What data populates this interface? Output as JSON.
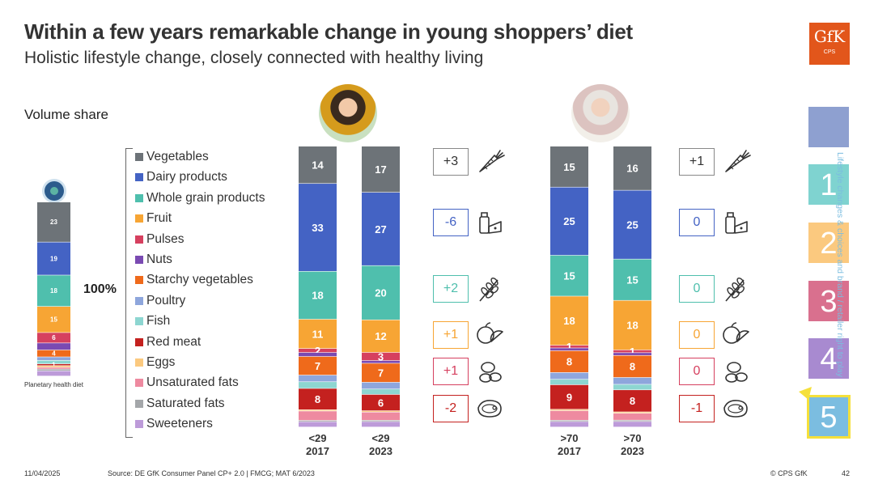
{
  "header": {
    "title": "Within a few years remarkable change in young shoppers’ diet",
    "subtitle": "Holistic lifestyle change, closely connected with healthy living"
  },
  "logo": {
    "brand": "GfK",
    "sub": "CPS",
    "color": "#e2561b"
  },
  "volume_label": "Volume share",
  "hundred_label": "100%",
  "planetary_label": "Planetary health diet",
  "legend": [
    {
      "label": "Vegetables",
      "color": "#6d7378"
    },
    {
      "label": "Dairy products",
      "color": "#4463c4"
    },
    {
      "label": "Whole grain products",
      "color": "#4fbfad"
    },
    {
      "label": "Fruit",
      "color": "#f7a534"
    },
    {
      "label": "Pulses",
      "color": "#d6405f"
    },
    {
      "label": "Nuts",
      "color": "#7a4ab2"
    },
    {
      "label": "Starchy vegetables",
      "color": "#ef6a1b"
    },
    {
      "label": "Poultry",
      "color": "#8ea6dc"
    },
    {
      "label": "Fish",
      "color": "#8dd6d1"
    },
    {
      "label": "Red meat",
      "color": "#c4211f"
    },
    {
      "label": "Eggs",
      "color": "#fbc97f"
    },
    {
      "label": "Unsaturated fats",
      "color": "#ee8aa0"
    },
    {
      "label": "Saturated fats",
      "color": "#a4a7aa"
    },
    {
      "label": "Sweeteners",
      "color": "#bd9bd9"
    }
  ],
  "chart_data": {
    "type": "bar",
    "stacked": true,
    "series_order": [
      "Vegetables",
      "Dairy products",
      "Whole grain products",
      "Fruit",
      "Pulses",
      "Nuts",
      "Starchy vegetables",
      "Poultry",
      "Fish",
      "Red meat",
      "Eggs",
      "Unsaturated fats",
      "Saturated fats",
      "Sweeteners"
    ],
    "bars": [
      {
        "id": "phd",
        "label": "Planetary health diet",
        "values": [
          23,
          19,
          18,
          15,
          6,
          4,
          4,
          2,
          2,
          1,
          1,
          1,
          1,
          3
        ],
        "labels": [
          "23",
          "19",
          "18",
          "15",
          "6",
          "",
          "4",
          "",
          "",
          "1",
          "",
          "",
          "",
          ""
        ]
      },
      {
        "id": "y2017",
        "label": [
          "<29",
          "2017"
        ],
        "values": [
          14,
          33,
          18,
          11,
          1.5,
          1.5,
          7,
          2.5,
          2.5,
          8,
          0.5,
          3.5,
          0.5,
          2
        ],
        "labels": [
          "14",
          "33",
          "18",
          "11",
          "2",
          "",
          "7",
          "",
          "",
          "8",
          "",
          "",
          "",
          ""
        ]
      },
      {
        "id": "y2023",
        "label": [
          "<29",
          "2023"
        ],
        "values": [
          17,
          27,
          20,
          12,
          3,
          1,
          7,
          2.5,
          2,
          6,
          0.5,
          3,
          0.5,
          2
        ],
        "labels": [
          "17",
          "27",
          "20",
          "12",
          "3",
          "",
          "7",
          "",
          "",
          "6",
          "",
          "",
          "",
          ""
        ]
      },
      {
        "id": "o2017",
        "label": [
          ">70",
          "2017"
        ],
        "values": [
          15,
          25,
          15,
          18,
          1,
          1,
          8,
          2.5,
          2,
          9,
          0.5,
          3.5,
          0.5,
          2
        ],
        "labels": [
          "15",
          "25",
          "15",
          "18",
          "1",
          "",
          "8",
          "",
          "",
          "9",
          "",
          "",
          "",
          ""
        ]
      },
      {
        "id": "o2023",
        "label": [
          ">70",
          "2023"
        ],
        "values": [
          16,
          25,
          15,
          18,
          1,
          1,
          8,
          2.5,
          2,
          8,
          0.5,
          2.5,
          0.5,
          2
        ],
        "labels": [
          "16",
          "25",
          "15",
          "18",
          "1",
          "",
          "8",
          "",
          "",
          "8",
          "",
          "",
          "",
          ""
        ]
      }
    ],
    "deltas_young": [
      {
        "value": "+3",
        "color": "#333333",
        "border": "#888888",
        "icon": "carrot-icon"
      },
      {
        "value": "-6",
        "color": "#4463c4",
        "border": "#4463c4",
        "icon": "dairy-icon"
      },
      {
        "value": "+2",
        "color": "#4fbfad",
        "border": "#4fbfad",
        "icon": "grain-icon"
      },
      {
        "value": "+1",
        "color": "#f7a534",
        "border": "#f7a534",
        "icon": "fruit-icon"
      },
      {
        "value": "+1",
        "color": "#d6405f",
        "border": "#d6405f",
        "icon": "pulses-icon"
      },
      {
        "value": "-2",
        "color": "#c4211f",
        "border": "#c4211f",
        "icon": "meat-icon"
      }
    ],
    "deltas_old": [
      {
        "value": "+1",
        "color": "#333333",
        "border": "#888888",
        "icon": "carrot-icon"
      },
      {
        "value": "0",
        "color": "#4463c4",
        "border": "#4463c4",
        "icon": "dairy-icon"
      },
      {
        "value": "0",
        "color": "#4fbfad",
        "border": "#4fbfad",
        "icon": "grain-icon"
      },
      {
        "value": "0",
        "color": "#f7a534",
        "border": "#f7a534",
        "icon": "fruit-icon"
      },
      {
        "value": "0",
        "color": "#d6405f",
        "border": "#d6405f",
        "icon": "pulses-icon"
      },
      {
        "value": "-1",
        "color": "#c4211f",
        "border": "#c4211f",
        "icon": "meat-icon"
      }
    ]
  },
  "sidebar": {
    "text": "Lifestyle changes & choices and brand / retailer right to play",
    "squares": [
      {
        "label": "",
        "color": "#8ea0d0"
      },
      {
        "label": "1",
        "color": "#7fd3d0"
      },
      {
        "label": "2",
        "color": "#fbc97f"
      },
      {
        "label": "3",
        "color": "#d9708e"
      },
      {
        "label": "4",
        "color": "#a88ad0"
      },
      {
        "label": "5",
        "color": "#7bbde0"
      }
    ]
  },
  "footer": {
    "date": "11/04/2025",
    "source": "Source: DE GfK Consumer Panel CP+ 2.0 | FMCG; MAT 6/2023",
    "copyright": "© CPS GfK",
    "page": "42"
  }
}
